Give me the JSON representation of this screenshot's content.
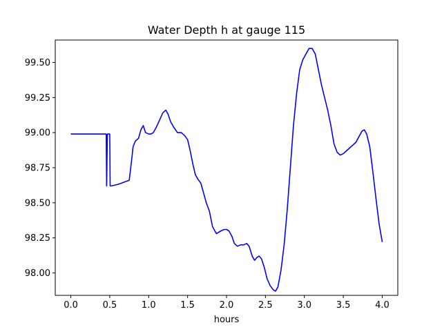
{
  "chart_data": {
    "type": "line",
    "title": "Water Depth h at gauge 115",
    "xlabel": "hours",
    "ylabel": "",
    "xlim": [
      -0.2,
      4.2
    ],
    "ylim": [
      97.84,
      99.66
    ],
    "x_ticks": [
      0.0,
      0.5,
      1.0,
      1.5,
      2.0,
      2.5,
      3.0,
      3.5,
      4.0
    ],
    "x_tick_labels": [
      "0.0",
      "0.5",
      "1.0",
      "1.5",
      "2.0",
      "2.5",
      "3.0",
      "3.5",
      "4.0"
    ],
    "y_ticks": [
      98.0,
      98.25,
      98.5,
      98.75,
      99.0,
      99.25,
      99.5
    ],
    "y_tick_labels": [
      "98.00",
      "98.25",
      "98.50",
      "98.75",
      "99.00",
      "99.25",
      "99.50"
    ],
    "grid": false,
    "legend": "none",
    "series": [
      {
        "color": "#0000ff",
        "x": [
          0.0,
          0.2,
          0.44,
          0.45,
          0.455,
          0.46,
          0.47,
          0.495,
          0.5,
          0.505,
          0.52,
          0.6,
          0.65,
          0.7,
          0.75,
          0.78,
          0.8,
          0.83,
          0.87,
          0.9,
          0.93,
          0.96,
          1.0,
          1.03,
          1.06,
          1.1,
          1.14,
          1.18,
          1.22,
          1.25,
          1.28,
          1.32,
          1.37,
          1.42,
          1.46,
          1.5,
          1.53,
          1.57,
          1.6,
          1.63,
          1.67,
          1.7,
          1.74,
          1.78,
          1.82,
          1.87,
          1.9,
          1.93,
          1.97,
          2.0,
          2.03,
          2.07,
          2.1,
          2.14,
          2.18,
          2.22,
          2.26,
          2.29,
          2.33,
          2.36,
          2.39,
          2.42,
          2.45,
          2.49,
          2.52,
          2.56,
          2.6,
          2.63,
          2.66,
          2.7,
          2.74,
          2.78,
          2.82,
          2.86,
          2.9,
          2.94,
          2.98,
          3.02,
          3.06,
          3.1,
          3.14,
          3.18,
          3.22,
          3.26,
          3.3,
          3.34,
          3.38,
          3.42,
          3.46,
          3.5,
          3.54,
          3.58,
          3.62,
          3.66,
          3.7,
          3.74,
          3.77,
          3.8,
          3.84,
          3.88,
          3.92,
          3.96,
          4.0
        ],
        "values": [
          98.99,
          98.99,
          98.99,
          98.99,
          98.99,
          98.62,
          98.99,
          98.99,
          98.99,
          98.62,
          98.62,
          98.63,
          98.64,
          98.65,
          98.66,
          98.8,
          98.9,
          98.94,
          98.96,
          99.02,
          99.05,
          99.0,
          98.99,
          98.99,
          99.0,
          99.04,
          99.09,
          99.14,
          99.16,
          99.13,
          99.08,
          99.04,
          99.0,
          99.0,
          98.98,
          98.95,
          98.88,
          98.77,
          98.7,
          98.67,
          98.64,
          98.58,
          98.5,
          98.44,
          98.33,
          98.28,
          98.29,
          98.3,
          98.31,
          98.31,
          98.3,
          98.26,
          98.21,
          98.19,
          98.2,
          98.2,
          98.21,
          98.19,
          98.12,
          98.09,
          98.11,
          98.12,
          98.1,
          98.03,
          97.96,
          97.91,
          97.88,
          97.87,
          97.9,
          98.02,
          98.2,
          98.45,
          98.75,
          99.05,
          99.28,
          99.45,
          99.52,
          99.56,
          99.6,
          99.6,
          99.56,
          99.45,
          99.34,
          99.25,
          99.16,
          99.05,
          98.92,
          98.86,
          98.84,
          98.85,
          98.87,
          98.89,
          98.91,
          98.93,
          98.97,
          99.01,
          99.02,
          98.99,
          98.9,
          98.72,
          98.53,
          98.35,
          98.22
        ]
      }
    ]
  }
}
